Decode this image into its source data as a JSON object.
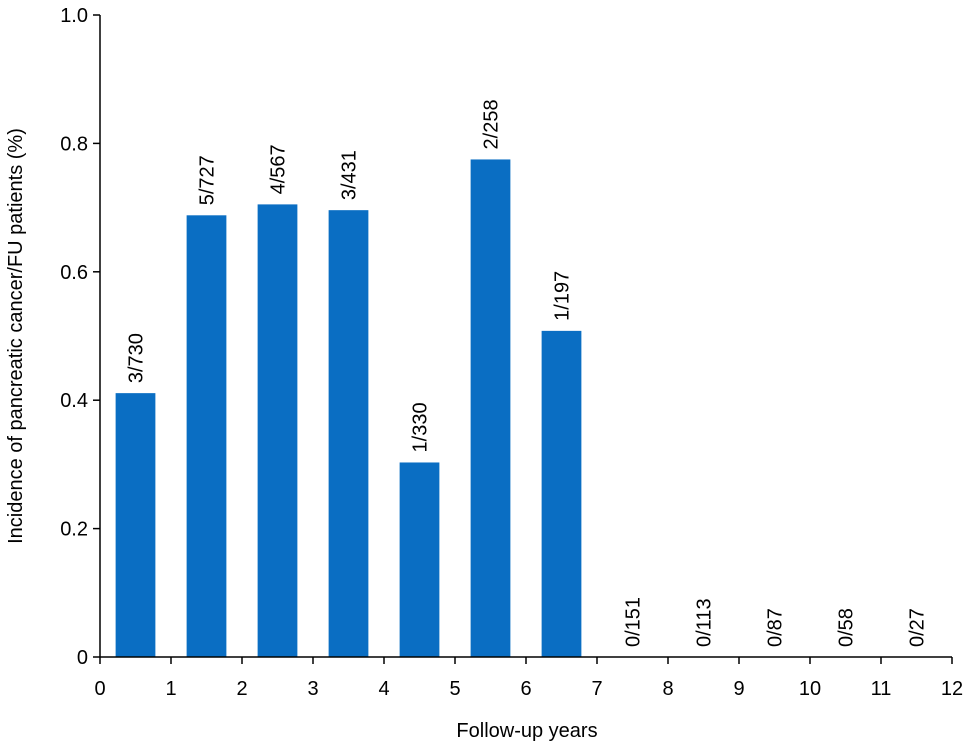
{
  "chart_data": {
    "type": "bar",
    "x": [
      0.5,
      1.5,
      2.5,
      3.5,
      4.5,
      5.5,
      6.5,
      7.5,
      8.5,
      9.5,
      10.5,
      11.5
    ],
    "values": [
      0.411,
      0.688,
      0.705,
      0.696,
      0.303,
      0.775,
      0.508,
      0,
      0,
      0,
      0,
      0
    ],
    "value_labels": [
      "3/730",
      "5/727",
      "4/567",
      "3/431",
      "1/330",
      "2/258",
      "1/197",
      "0/151",
      "0/113",
      "0/87",
      "0/58",
      "0/27"
    ],
    "color": "#0a6ec3",
    "xlabel": "Follow-up years",
    "ylabel": "Incidence of pancreatic cancer/FU patients (%)",
    "xlim": [
      0,
      12
    ],
    "xticks": [
      0,
      1,
      2,
      3,
      4,
      5,
      6,
      7,
      8,
      9,
      10,
      11,
      12
    ],
    "ylim": [
      0,
      1
    ],
    "yticks": [
      0,
      0.2,
      0.4,
      0.6,
      0.8,
      {
        "value": 1,
        "label": "1.0"
      }
    ],
    "grid": false
  }
}
